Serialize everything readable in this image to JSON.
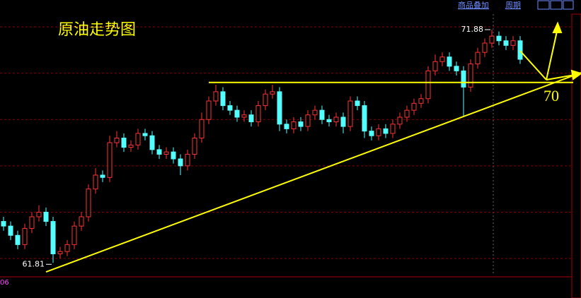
{
  "chart_data": {
    "type": "candlestick",
    "title": "原油走势图",
    "toolbar": [
      "商品叠加",
      "周期"
    ],
    "indicator_label": "06",
    "xlim": [
      -0.5,
      81.6
    ],
    "ylim": [
      61.27,
      73.16
    ],
    "gridlines": [
      62,
      64,
      66,
      68,
      70,
      72
    ],
    "up_color": "#ff3232",
    "down_color": "#54ffff",
    "open": [
      63.6,
      63.4,
      63.0,
      62.6,
      63.3,
      63.8,
      64.0,
      63.6,
      62.2,
      62.3,
      62.6,
      63.4,
      63.8,
      65.0,
      65.6,
      65.5,
      67.0,
      67.2,
      66.8,
      66.9,
      67.4,
      67.3,
      66.7,
      66.5,
      66.6,
      66.3,
      66.0,
      66.5,
      67.2,
      68.0,
      68.8,
      69.2,
      68.6,
      68.4,
      68.1,
      68.2,
      67.9,
      68.6,
      69.1,
      69.2,
      67.8,
      67.6,
      67.9,
      67.7,
      68.2,
      68.4,
      68.0,
      67.9,
      68.1,
      67.7,
      68.8,
      68.6,
      67.5,
      67.3,
      67.6,
      67.4,
      67.8,
      68.1,
      68.4,
      68.7,
      68.9,
      70.1,
      70.5,
      70.7,
      70.3,
      70.1,
      69.4,
      70.4,
      70.9,
      71.3,
      71.6,
      71.4,
      71.2,
      71.4
    ],
    "high": [
      63.8,
      63.6,
      63.2,
      63.5,
      64.0,
      64.3,
      64.2,
      63.8,
      62.5,
      62.8,
      63.6,
      64.0,
      65.2,
      65.9,
      65.8,
      67.3,
      67.5,
      67.4,
      67.1,
      67.6,
      67.6,
      67.5,
      66.9,
      66.8,
      66.8,
      66.5,
      66.7,
      67.4,
      68.3,
      69.0,
      69.5,
      69.4,
      68.8,
      68.6,
      68.4,
      68.4,
      68.8,
      69.3,
      69.5,
      69.4,
      68.0,
      68.1,
      68.1,
      68.4,
      68.6,
      68.6,
      68.2,
      68.3,
      68.3,
      69.0,
      69.0,
      68.8,
      67.7,
      67.8,
      67.8,
      68.0,
      68.3,
      68.6,
      68.9,
      69.1,
      70.3,
      70.8,
      70.9,
      70.9,
      70.5,
      70.3,
      70.6,
      71.1,
      71.5,
      71.88,
      71.8,
      71.6,
      71.6,
      71.6
    ],
    "low": [
      63.2,
      62.8,
      62.4,
      62.4,
      63.1,
      63.6,
      63.4,
      61.81,
      62.0,
      62.1,
      62.4,
      63.2,
      63.6,
      64.8,
      65.3,
      65.3,
      66.8,
      66.6,
      66.6,
      66.7,
      67.1,
      66.5,
      66.3,
      66.3,
      66.1,
      65.6,
      65.8,
      66.3,
      67.0,
      67.8,
      68.6,
      68.4,
      68.2,
      67.9,
      67.9,
      67.7,
      67.7,
      68.4,
      68.9,
      67.5,
      67.4,
      67.4,
      67.5,
      67.5,
      68.0,
      67.8,
      67.7,
      67.7,
      67.4,
      67.5,
      68.4,
      67.2,
      67.1,
      67.1,
      67.2,
      67.2,
      67.6,
      67.9,
      68.2,
      68.5,
      68.7,
      69.9,
      70.3,
      70.1,
      69.9,
      68.1,
      69.2,
      70.2,
      70.7,
      71.1,
      71.2,
      71.0,
      71.0,
      70.4
    ],
    "close": [
      63.4,
      63.0,
      62.6,
      63.3,
      63.8,
      64.0,
      63.6,
      62.2,
      62.3,
      62.6,
      63.4,
      63.8,
      65.0,
      65.6,
      65.5,
      67.0,
      67.2,
      66.8,
      66.9,
      67.4,
      67.3,
      66.7,
      66.5,
      66.6,
      66.3,
      66.0,
      66.5,
      67.2,
      68.0,
      68.8,
      69.2,
      68.6,
      68.4,
      68.1,
      68.2,
      67.9,
      68.6,
      69.1,
      69.2,
      67.8,
      67.6,
      67.9,
      67.7,
      68.2,
      68.4,
      68.0,
      67.9,
      68.1,
      67.7,
      68.8,
      68.6,
      67.5,
      67.3,
      67.6,
      67.4,
      67.8,
      68.1,
      68.4,
      68.7,
      68.9,
      70.1,
      70.5,
      70.7,
      70.3,
      70.1,
      69.4,
      70.4,
      70.9,
      71.3,
      71.6,
      71.4,
      71.2,
      71.4,
      70.6
    ],
    "lines": [
      {
        "color": "#ffff00",
        "x": [
          6,
          81.6
        ],
        "y": [
          61.42,
          70.02
        ]
      },
      {
        "color": "#ffff00",
        "x": [
          29,
          80.5
        ],
        "y": [
          69.6,
          69.6
        ]
      }
    ],
    "annotation": "70"
  }
}
